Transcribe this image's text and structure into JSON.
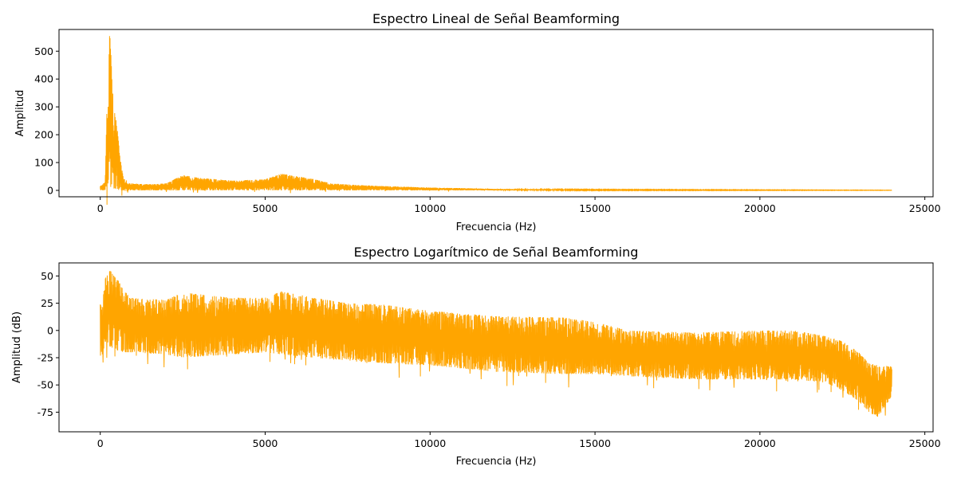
{
  "chart_data": [
    {
      "type": "line",
      "title": "Espectro Lineal de Señal Beamforming",
      "xlabel": "Frecuencia (Hz)",
      "ylabel": "Amplitud",
      "xlim": [
        -1250,
        25250
      ],
      "ylim": [
        -23,
        578
      ],
      "xticks": [
        0,
        5000,
        10000,
        15000,
        20000,
        25000
      ],
      "yticks": [
        0,
        100,
        200,
        300,
        400,
        500
      ],
      "grid": false,
      "color": "#ffa500",
      "envelope": {
        "x": [
          0,
          150,
          200,
          250,
          280,
          300,
          330,
          400,
          500,
          600,
          700,
          900,
          1500,
          2000,
          2500,
          3000,
          4000,
          5000,
          5500,
          6000,
          6500,
          7000,
          8000,
          9000,
          10000,
          11000,
          12000,
          15000,
          20000,
          24000
        ],
        "upper": [
          15,
          30,
          290,
          420,
          555,
          555,
          480,
          300,
          240,
          120,
          45,
          25,
          22,
          25,
          55,
          45,
          35,
          40,
          60,
          50,
          40,
          25,
          18,
          14,
          10,
          8,
          5,
          3,
          2,
          1
        ],
        "lower": [
          0,
          0,
          0,
          5,
          10,
          5,
          5,
          3,
          2,
          1,
          0,
          0,
          0,
          0,
          0,
          0,
          0,
          0,
          0,
          0,
          0,
          0,
          0,
          0,
          0,
          0,
          0,
          0,
          0,
          0
        ]
      }
    },
    {
      "type": "line",
      "title": "Espectro Logarítmico de Señal Beamforming",
      "xlabel": "Frecuencia (Hz)",
      "ylabel": "Amplitud (dB)",
      "xlim": [
        -1250,
        25250
      ],
      "ylim": [
        -93,
        62
      ],
      "xticks": [
        0,
        5000,
        10000,
        15000,
        20000,
        25000
      ],
      "yticks": [
        -75,
        -50,
        -25,
        0,
        25,
        50
      ],
      "grid": false,
      "color": "#ffa500",
      "envelope": {
        "x": [
          0,
          50,
          150,
          300,
          500,
          700,
          900,
          2000,
          2500,
          4000,
          5000,
          5500,
          6500,
          7500,
          8500,
          10000,
          12000,
          14000,
          15000,
          16000,
          18000,
          20000,
          21000,
          22000,
          22500,
          23000,
          23300,
          23600,
          24000
        ],
        "upper": [
          25,
          20,
          48,
          55,
          48,
          38,
          30,
          28,
          35,
          30,
          30,
          36,
          30,
          25,
          24,
          18,
          13,
          12,
          8,
          0,
          -2,
          0,
          0,
          -5,
          -10,
          -20,
          -30,
          -32,
          -33
        ],
        "lower": [
          -35,
          -25,
          -10,
          -15,
          -18,
          -20,
          -20,
          -22,
          -25,
          -22,
          -20,
          -22,
          -25,
          -28,
          -30,
          -32,
          -38,
          -40,
          -40,
          -42,
          -45,
          -45,
          -45,
          -48,
          -55,
          -65,
          -75,
          -80,
          -60
        ]
      }
    }
  ]
}
